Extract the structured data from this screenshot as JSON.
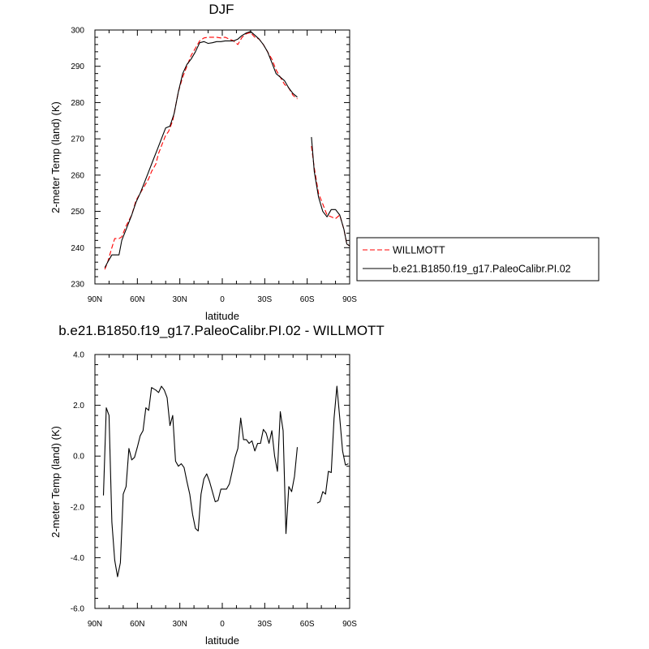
{
  "chart_data": [
    {
      "type": "line",
      "title": "DJF",
      "xlabel": "latitude",
      "ylabel": "2-meter Temp (land) (K)",
      "x_tick_values": [
        90,
        60,
        30,
        0,
        -30,
        -60,
        -90
      ],
      "x_tick_labels": [
        "90N",
        "60N",
        "30N",
        "0",
        "30S",
        "60S",
        "90S"
      ],
      "xlim": [
        90,
        -90
      ],
      "y_ticks": [
        230,
        240,
        250,
        260,
        270,
        280,
        290,
        300
      ],
      "y_tick_labels": [
        "230",
        "240",
        "250",
        "260",
        "270",
        "280",
        "290",
        "300"
      ],
      "ylim": [
        230,
        300
      ],
      "grid": false,
      "legend_position": "right",
      "series": [
        {
          "name": "WILLMOTT",
          "color": "#ff0000",
          "dash": "dashed",
          "segments": [
            [
              [
                83,
                234
              ],
              [
                81,
                236
              ],
              [
                78,
                240
              ],
              [
                76,
                242.5
              ],
              [
                73,
                242.5
              ],
              [
                71,
                243
              ],
              [
                68,
                246
              ],
              [
                64,
                249
              ],
              [
                61,
                253
              ],
              [
                58,
                255
              ],
              [
                55,
                257
              ],
              [
                52,
                259
              ],
              [
                50,
                261
              ],
              [
                47,
                263
              ],
              [
                45,
                266
              ],
              [
                42,
                269
              ],
              [
                40,
                271
              ],
              [
                38,
                272
              ],
              [
                35,
                275
              ],
              [
                33,
                279
              ],
              [
                31,
                283
              ],
              [
                28,
                287
              ],
              [
                25,
                290
              ],
              [
                22,
                293
              ],
              [
                19,
                295
              ],
              [
                16,
                297
              ],
              [
                13,
                297.8
              ],
              [
                10,
                298
              ],
              [
                7,
                298
              ],
              [
                4,
                298
              ],
              [
                1,
                297.8
              ],
              [
                -2,
                298
              ],
              [
                -5,
                297.5
              ],
              [
                -8,
                297
              ],
              [
                -11,
                296
              ],
              [
                -14,
                298
              ],
              [
                -17,
                299
              ],
              [
                -20,
                299.3
              ],
              [
                -23,
                298
              ],
              [
                -26,
                297.5
              ],
              [
                -29,
                296
              ],
              [
                -32,
                294
              ],
              [
                -35,
                292
              ],
              [
                -38,
                289
              ],
              [
                -41,
                287
              ],
              [
                -44,
                285
              ],
              [
                -47,
                284
              ],
              [
                -50,
                282
              ],
              [
                -53,
                281
              ]
            ],
            [
              [
                -63,
                268
              ],
              [
                -65,
                262
              ],
              [
                -68,
                255
              ],
              [
                -71,
                252
              ],
              [
                -74,
                249
              ],
              [
                -77,
                248.5
              ],
              [
                -80,
                248
              ],
              [
                -83,
                249
              ],
              [
                -86,
                245
              ],
              [
                -88,
                241
              ],
              [
                -90,
                240.5
              ]
            ]
          ]
        },
        {
          "name": "b.e21.B1850.f19_g17.PaleoCalibr.PI.02",
          "color": "#000000",
          "dash": "solid",
          "segments": [
            [
              [
                83,
                234.5
              ],
              [
                81,
                236
              ],
              [
                78,
                238
              ],
              [
                75,
                238
              ],
              [
                73,
                238
              ],
              [
                71,
                242
              ],
              [
                68,
                245
              ],
              [
                64,
                249
              ],
              [
                61,
                252.5
              ],
              [
                58,
                255
              ],
              [
                55,
                258
              ],
              [
                52,
                261
              ],
              [
                49,
                264
              ],
              [
                46,
                267
              ],
              [
                43,
                270
              ],
              [
                40,
                273
              ],
              [
                37,
                273.5
              ],
              [
                34,
                277
              ],
              [
                31,
                283
              ],
              [
                28,
                288
              ],
              [
                25,
                290.5
              ],
              [
                22,
                292
              ],
              [
                19,
                294
              ],
              [
                16,
                296.5
              ],
              [
                13,
                296.8
              ],
              [
                10,
                296.3
              ],
              [
                7,
                296.5
              ],
              [
                4,
                296.8
              ],
              [
                1,
                296.8
              ],
              [
                -2,
                297
              ],
              [
                -5,
                297
              ],
              [
                -8,
                297
              ],
              [
                -11,
                297.5
              ],
              [
                -14,
                298.5
              ],
              [
                -17,
                299.2
              ],
              [
                -20,
                299.6
              ],
              [
                -23,
                298.6
              ],
              [
                -26,
                297.5
              ],
              [
                -29,
                296
              ],
              [
                -32,
                294
              ],
              [
                -35,
                291
              ],
              [
                -38,
                288
              ],
              [
                -41,
                287
              ],
              [
                -44,
                286
              ],
              [
                -47,
                284
              ],
              [
                -50,
                282.5
              ],
              [
                -53,
                281.5
              ]
            ],
            [
              [
                -63,
                270.5
              ],
              [
                -65,
                261
              ],
              [
                -68,
                254
              ],
              [
                -71,
                250
              ],
              [
                -74,
                248.5
              ],
              [
                -77,
                250.5
              ],
              [
                -80,
                250.5
              ],
              [
                -83,
                249
              ],
              [
                -86,
                245
              ],
              [
                -88,
                241
              ],
              [
                -90,
                240.5
              ]
            ]
          ]
        }
      ]
    },
    {
      "type": "line",
      "title": "b.e21.B1850.f19_g17.PaleoCalibr.PI.02 - WILLMOTT",
      "xlabel": "latitude",
      "ylabel": "2-meter Temp (land) (K)",
      "x_tick_values": [
        90,
        60,
        30,
        0,
        -30,
        -60,
        -90
      ],
      "x_tick_labels": [
        "90N",
        "60N",
        "30N",
        "0",
        "30S",
        "60S",
        "90S"
      ],
      "xlim": [
        90,
        -90
      ],
      "y_ticks": [
        -6,
        -4,
        -2,
        0,
        2,
        4
      ],
      "y_tick_labels": [
        "-6.0",
        "-4.0",
        "-2.0",
        "0.0",
        "2.0",
        "4.0"
      ],
      "ylim": [
        -6,
        4
      ],
      "grid": false,
      "series": [
        {
          "color": "#000000",
          "dash": "solid",
          "segments": [
            [
              [
                84,
                -1.55
              ],
              [
                82,
                1.9
              ],
              [
                80,
                1.6
              ],
              [
                78,
                -2.6
              ],
              [
                76,
                -4.1
              ],
              [
                74,
                -4.75
              ],
              [
                72,
                -4.2
              ],
              [
                70,
                -1.5
              ],
              [
                68,
                -1.2
              ],
              [
                66,
                0.3
              ],
              [
                64,
                -0.15
              ],
              [
                62,
                -0.05
              ],
              [
                60,
                0.35
              ],
              [
                58,
                0.8
              ],
              [
                56,
                1.0
              ],
              [
                54,
                1.9
              ],
              [
                52,
                1.8
              ],
              [
                50,
                2.7
              ],
              [
                47,
                2.6
              ],
              [
                45,
                2.5
              ],
              [
                43,
                2.75
              ],
              [
                41,
                2.6
              ],
              [
                39,
                2.3
              ],
              [
                37,
                1.2
              ],
              [
                35,
                1.6
              ],
              [
                33,
                -0.2
              ],
              [
                31,
                -0.4
              ],
              [
                29,
                -0.3
              ],
              [
                27,
                -0.45
              ],
              [
                25,
                -1.0
              ],
              [
                23,
                -1.5
              ],
              [
                21,
                -2.3
              ],
              [
                19,
                -2.85
              ],
              [
                17,
                -2.95
              ],
              [
                15,
                -1.5
              ],
              [
                13,
                -0.9
              ],
              [
                11,
                -0.7
              ],
              [
                9,
                -1.0
              ],
              [
                7,
                -1.4
              ],
              [
                5,
                -1.8
              ],
              [
                3,
                -1.75
              ],
              [
                1,
                -1.3
              ],
              [
                -1,
                -1.3
              ],
              [
                -3,
                -1.3
              ],
              [
                -5,
                -1.1
              ],
              [
                -7,
                -0.6
              ],
              [
                -9,
                -0.05
              ],
              [
                -11,
                0.3
              ],
              [
                -13,
                1.5
              ],
              [
                -15,
                0.65
              ],
              [
                -17,
                0.65
              ],
              [
                -19,
                0.5
              ],
              [
                -21,
                0.6
              ],
              [
                -23,
                0.2
              ],
              [
                -25,
                0.5
              ],
              [
                -27,
                0.5
              ],
              [
                -29,
                1.05
              ],
              [
                -31,
                0.9
              ],
              [
                -33,
                0.5
              ],
              [
                -35,
                1.0
              ],
              [
                -37,
                0.0
              ],
              [
                -39,
                -0.6
              ],
              [
                -41,
                1.75
              ],
              [
                -43,
                1.0
              ],
              [
                -45,
                -3.05
              ],
              [
                -47,
                -1.2
              ],
              [
                -49,
                -1.4
              ],
              [
                -51,
                -0.8
              ],
              [
                -53,
                0.35
              ]
            ],
            [
              [
                -67,
                -1.85
              ],
              [
                -69,
                -1.8
              ],
              [
                -71,
                -1.4
              ],
              [
                -73,
                -1.5
              ],
              [
                -75,
                -0.6
              ],
              [
                -77,
                -0.65
              ],
              [
                -79,
                1.5
              ],
              [
                -81,
                2.75
              ],
              [
                -83,
                1.5
              ],
              [
                -85,
                0.2
              ],
              [
                -87,
                -0.35
              ],
              [
                -89,
                -0.3
              ]
            ]
          ]
        }
      ]
    }
  ]
}
